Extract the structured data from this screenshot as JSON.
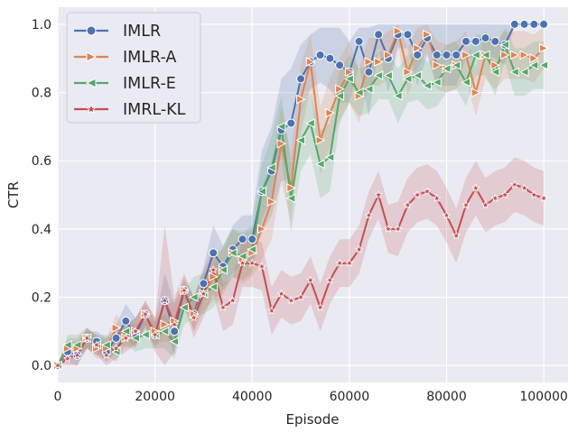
{
  "chart_data": {
    "type": "line",
    "xlabel": "Episode",
    "ylabel": "CTR",
    "xlim": [
      0,
      105000
    ],
    "ylim": [
      -0.05,
      1.05
    ],
    "x_ticks": [
      0,
      20000,
      40000,
      60000,
      80000,
      100000
    ],
    "x_tick_labels": [
      "0",
      "20000",
      "40000",
      "60000",
      "80000",
      "100000"
    ],
    "y_ticks": [
      0.0,
      0.2,
      0.4,
      0.6,
      0.8,
      1.0
    ],
    "y_tick_labels": [
      "0.0",
      "0.2",
      "0.4",
      "0.6",
      "0.8",
      "1.0"
    ],
    "grid": true,
    "legend_position": "top-left",
    "background": "#eaeaf2",
    "series": [
      {
        "name": "IMLR",
        "color": "#4c72b0",
        "marker": "circle",
        "x": [
          0,
          2000,
          4000,
          6000,
          8000,
          10000,
          12000,
          14000,
          16000,
          18000,
          20000,
          22000,
          24000,
          26000,
          28000,
          30000,
          32000,
          34000,
          36000,
          38000,
          40000,
          42000,
          44000,
          46000,
          48000,
          50000,
          52000,
          54000,
          56000,
          58000,
          60000,
          62000,
          64000,
          66000,
          68000,
          70000,
          72000,
          74000,
          76000,
          78000,
          80000,
          82000,
          84000,
          86000,
          88000,
          90000,
          92000,
          94000,
          96000,
          98000,
          100000
        ],
        "y": [
          0.0,
          0.04,
          0.03,
          0.08,
          0.07,
          0.04,
          0.08,
          0.13,
          0.09,
          0.15,
          0.09,
          0.19,
          0.1,
          0.22,
          0.15,
          0.24,
          0.33,
          0.29,
          0.34,
          0.37,
          0.37,
          0.51,
          0.57,
          0.69,
          0.71,
          0.84,
          0.89,
          0.91,
          0.9,
          0.88,
          0.86,
          0.95,
          0.86,
          0.97,
          0.9,
          0.97,
          0.97,
          0.91,
          0.96,
          0.91,
          0.91,
          0.91,
          0.95,
          0.95,
          0.96,
          0.95,
          0.94,
          1.0,
          1.0,
          1.0,
          1.0
        ],
        "upper": [
          0.0,
          0.07,
          0.07,
          0.1,
          0.1,
          0.08,
          0.12,
          0.18,
          0.14,
          0.18,
          0.13,
          0.27,
          0.18,
          0.25,
          0.2,
          0.29,
          0.41,
          0.35,
          0.41,
          0.44,
          0.44,
          0.63,
          0.7,
          0.84,
          0.87,
          0.94,
          0.97,
          0.99,
          0.99,
          0.99,
          0.95,
          0.99,
          0.99,
          1.0,
          1.0,
          1.0,
          1.0,
          1.0,
          1.0,
          1.0,
          1.0,
          1.0,
          1.0,
          1.0,
          1.0,
          1.0,
          1.0,
          1.0,
          1.0,
          1.0,
          1.0
        ],
        "lower": [
          0.0,
          0.01,
          0.0,
          0.05,
          0.04,
          0.01,
          0.04,
          0.08,
          0.05,
          0.12,
          0.05,
          0.11,
          0.03,
          0.19,
          0.1,
          0.19,
          0.25,
          0.23,
          0.27,
          0.3,
          0.3,
          0.39,
          0.44,
          0.54,
          0.55,
          0.74,
          0.81,
          0.83,
          0.81,
          0.77,
          0.77,
          0.88,
          0.73,
          0.93,
          0.8,
          0.93,
          0.93,
          0.82,
          0.91,
          0.82,
          0.82,
          0.82,
          0.9,
          0.9,
          0.91,
          0.9,
          0.88,
          1.0,
          1.0,
          1.0,
          1.0
        ]
      },
      {
        "name": "IMLR-A",
        "color": "#dd8452",
        "marker": "triangle-right",
        "x": [
          0,
          2000,
          4000,
          6000,
          8000,
          10000,
          12000,
          14000,
          16000,
          18000,
          20000,
          22000,
          24000,
          26000,
          28000,
          30000,
          32000,
          34000,
          36000,
          38000,
          40000,
          42000,
          44000,
          46000,
          48000,
          50000,
          52000,
          54000,
          56000,
          58000,
          60000,
          62000,
          64000,
          66000,
          68000,
          70000,
          72000,
          74000,
          76000,
          78000,
          80000,
          82000,
          84000,
          86000,
          88000,
          90000,
          92000,
          94000,
          96000,
          98000,
          100000
        ],
        "y": [
          0.0,
          0.05,
          0.05,
          0.08,
          0.05,
          0.05,
          0.11,
          0.08,
          0.1,
          0.15,
          0.1,
          0.12,
          0.13,
          0.22,
          0.15,
          0.21,
          0.26,
          0.28,
          0.33,
          0.31,
          0.33,
          0.4,
          0.48,
          0.65,
          0.52,
          0.78,
          0.89,
          0.66,
          0.74,
          0.81,
          0.86,
          0.79,
          0.89,
          0.89,
          0.91,
          0.98,
          0.86,
          0.93,
          0.97,
          0.88,
          0.87,
          0.88,
          0.91,
          0.8,
          0.91,
          0.88,
          0.91,
          0.91,
          0.91,
          0.9,
          0.93
        ],
        "upper": [
          0.0,
          0.08,
          0.08,
          0.11,
          0.08,
          0.08,
          0.15,
          0.11,
          0.14,
          0.19,
          0.14,
          0.17,
          0.19,
          0.26,
          0.2,
          0.26,
          0.33,
          0.34,
          0.4,
          0.38,
          0.4,
          0.49,
          0.59,
          0.76,
          0.62,
          0.88,
          0.97,
          0.76,
          0.84,
          0.9,
          0.95,
          0.87,
          0.96,
          0.96,
          0.98,
          1.0,
          0.93,
          0.99,
          1.0,
          0.95,
          0.94,
          0.95,
          0.98,
          0.87,
          0.98,
          0.95,
          0.98,
          0.98,
          0.98,
          0.97,
          0.99
        ],
        "lower": [
          0.0,
          0.02,
          0.02,
          0.05,
          0.02,
          0.02,
          0.07,
          0.05,
          0.06,
          0.11,
          0.06,
          0.07,
          0.07,
          0.18,
          0.1,
          0.16,
          0.19,
          0.22,
          0.26,
          0.24,
          0.26,
          0.31,
          0.37,
          0.54,
          0.42,
          0.68,
          0.81,
          0.56,
          0.64,
          0.72,
          0.77,
          0.71,
          0.82,
          0.82,
          0.84,
          0.94,
          0.79,
          0.87,
          0.92,
          0.81,
          0.8,
          0.81,
          0.84,
          0.73,
          0.84,
          0.81,
          0.84,
          0.84,
          0.84,
          0.83,
          0.87
        ]
      },
      {
        "name": "IMLR-E",
        "color": "#55a868",
        "marker": "triangle-left",
        "x": [
          0,
          2000,
          4000,
          6000,
          8000,
          10000,
          12000,
          14000,
          16000,
          18000,
          20000,
          22000,
          24000,
          26000,
          28000,
          30000,
          32000,
          34000,
          36000,
          38000,
          40000,
          42000,
          44000,
          46000,
          48000,
          50000,
          52000,
          54000,
          56000,
          58000,
          60000,
          62000,
          64000,
          66000,
          68000,
          70000,
          72000,
          74000,
          76000,
          78000,
          80000,
          82000,
          84000,
          86000,
          88000,
          90000,
          92000,
          94000,
          96000,
          98000,
          100000
        ],
        "y": [
          0.0,
          0.06,
          0.06,
          0.08,
          0.06,
          0.06,
          0.04,
          0.1,
          0.08,
          0.09,
          0.09,
          0.1,
          0.07,
          0.17,
          0.2,
          0.21,
          0.23,
          0.28,
          0.33,
          0.32,
          0.34,
          0.51,
          0.58,
          0.7,
          0.49,
          0.66,
          0.71,
          0.59,
          0.61,
          0.79,
          0.84,
          0.8,
          0.81,
          0.85,
          0.85,
          0.79,
          0.84,
          0.85,
          0.82,
          0.83,
          0.87,
          0.88,
          0.83,
          0.91,
          0.91,
          0.86,
          0.94,
          0.86,
          0.86,
          0.88,
          0.88
        ],
        "upper": [
          0.0,
          0.09,
          0.09,
          0.11,
          0.09,
          0.09,
          0.07,
          0.14,
          0.12,
          0.13,
          0.13,
          0.15,
          0.12,
          0.22,
          0.26,
          0.27,
          0.29,
          0.35,
          0.4,
          0.39,
          0.41,
          0.59,
          0.67,
          0.79,
          0.59,
          0.75,
          0.8,
          0.69,
          0.71,
          0.87,
          0.91,
          0.87,
          0.88,
          0.92,
          0.92,
          0.87,
          0.91,
          0.92,
          0.89,
          0.9,
          0.94,
          0.95,
          0.9,
          0.97,
          0.97,
          0.93,
          0.99,
          0.93,
          0.93,
          0.95,
          0.95
        ],
        "lower": [
          0.0,
          0.03,
          0.03,
          0.05,
          0.03,
          0.03,
          0.01,
          0.06,
          0.04,
          0.05,
          0.05,
          0.05,
          0.02,
          0.12,
          0.14,
          0.15,
          0.17,
          0.21,
          0.26,
          0.25,
          0.27,
          0.43,
          0.49,
          0.61,
          0.39,
          0.57,
          0.62,
          0.49,
          0.51,
          0.71,
          0.77,
          0.73,
          0.74,
          0.78,
          0.78,
          0.71,
          0.77,
          0.78,
          0.75,
          0.76,
          0.8,
          0.81,
          0.76,
          0.85,
          0.85,
          0.79,
          0.89,
          0.79,
          0.79,
          0.81,
          0.81
        ]
      },
      {
        "name": "IMRL-KL",
        "color": "#c44e52",
        "marker": "star",
        "x": [
          0,
          2000,
          4000,
          6000,
          8000,
          10000,
          12000,
          14000,
          16000,
          18000,
          20000,
          22000,
          24000,
          26000,
          28000,
          30000,
          32000,
          34000,
          36000,
          38000,
          40000,
          42000,
          44000,
          46000,
          48000,
          50000,
          52000,
          54000,
          56000,
          58000,
          60000,
          62000,
          64000,
          66000,
          68000,
          70000,
          72000,
          74000,
          76000,
          78000,
          80000,
          82000,
          84000,
          86000,
          88000,
          90000,
          92000,
          94000,
          96000,
          98000,
          100000
        ],
        "y": [
          0.0,
          0.02,
          0.03,
          0.08,
          0.06,
          0.03,
          0.05,
          0.08,
          0.1,
          0.15,
          0.09,
          0.19,
          0.12,
          0.22,
          0.14,
          0.21,
          0.28,
          0.17,
          0.19,
          0.3,
          0.3,
          0.29,
          0.16,
          0.21,
          0.19,
          0.2,
          0.25,
          0.17,
          0.25,
          0.3,
          0.3,
          0.34,
          0.44,
          0.5,
          0.4,
          0.4,
          0.47,
          0.5,
          0.51,
          0.49,
          0.44,
          0.38,
          0.47,
          0.52,
          0.47,
          0.49,
          0.5,
          0.53,
          0.52,
          0.5,
          0.49
        ],
        "upper": [
          0.0,
          0.04,
          0.06,
          0.11,
          0.09,
          0.06,
          0.08,
          0.12,
          0.14,
          0.19,
          0.14,
          0.41,
          0.2,
          0.27,
          0.2,
          0.28,
          0.35,
          0.24,
          0.26,
          0.37,
          0.37,
          0.36,
          0.23,
          0.28,
          0.26,
          0.27,
          0.32,
          0.24,
          0.32,
          0.37,
          0.37,
          0.41,
          0.51,
          0.57,
          0.47,
          0.48,
          0.55,
          0.58,
          0.59,
          0.57,
          0.52,
          0.46,
          0.55,
          0.6,
          0.55,
          0.57,
          0.58,
          0.61,
          0.6,
          0.58,
          0.57
        ],
        "lower": [
          0.0,
          0.0,
          0.0,
          0.05,
          0.03,
          0.0,
          0.02,
          0.04,
          0.06,
          0.11,
          0.04,
          0.0,
          0.04,
          0.17,
          0.08,
          0.14,
          0.21,
          0.1,
          0.12,
          0.23,
          0.23,
          0.22,
          0.09,
          0.14,
          0.12,
          0.13,
          0.18,
          0.1,
          0.18,
          0.23,
          0.23,
          0.27,
          0.37,
          0.43,
          0.33,
          0.32,
          0.39,
          0.42,
          0.43,
          0.41,
          0.36,
          0.3,
          0.39,
          0.44,
          0.39,
          0.41,
          0.42,
          0.45,
          0.44,
          0.42,
          0.41
        ]
      }
    ]
  }
}
